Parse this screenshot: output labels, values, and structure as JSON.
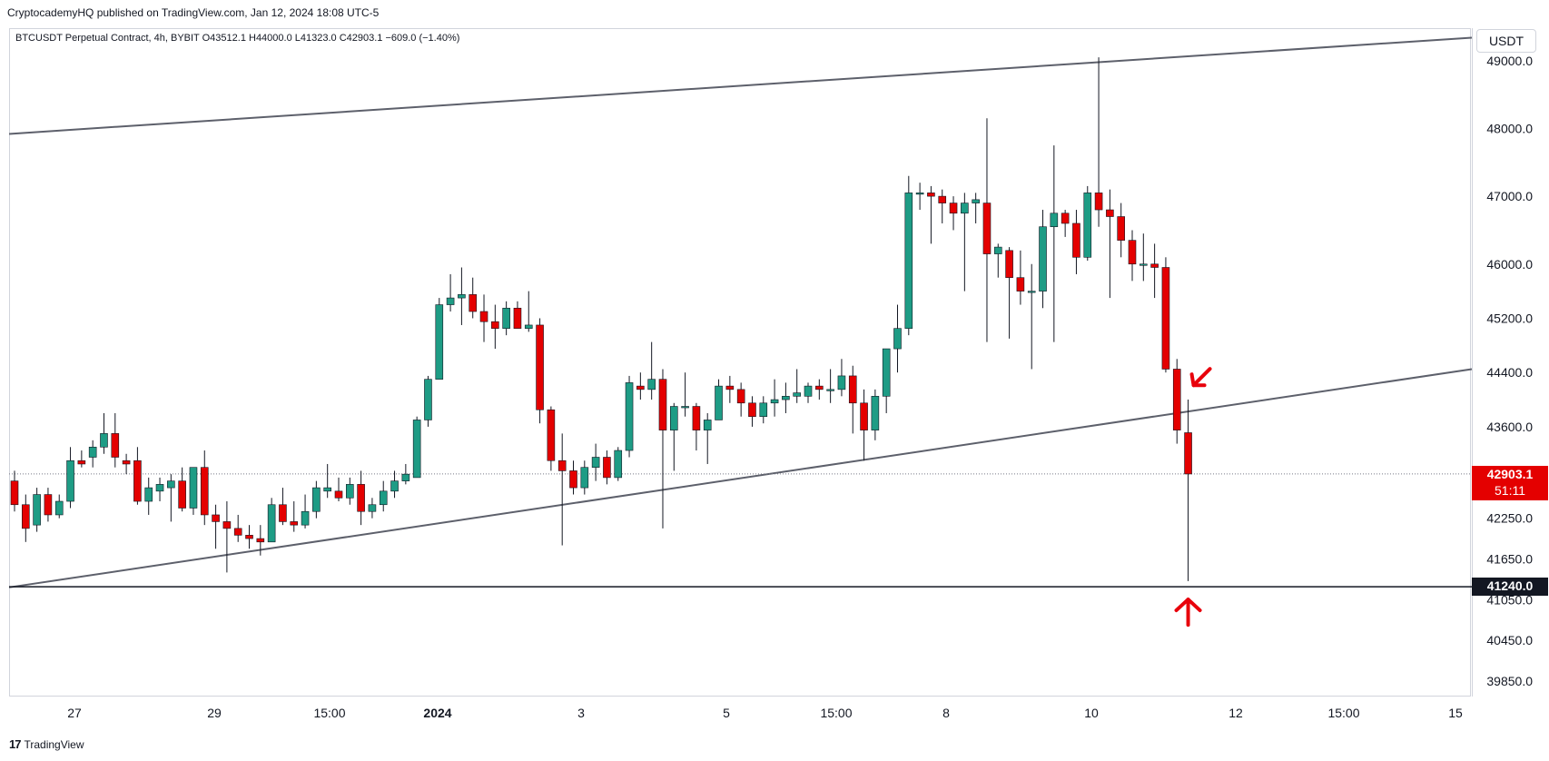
{
  "header": {
    "publisher_line": "CryptocademyHQ published on TradingView.com, Jan 12, 2024 18:08 UTC-5",
    "symbol_line": "BTCUSDT Perpetual Contract, 4h, BYBIT  O43512.1  H44000.0  L41323.0  C42903.1  −609.0 (−1.40%)"
  },
  "price_axis": {
    "currency": "USDT",
    "ticks": [
      "49000.0",
      "48000.0",
      "47000.0",
      "46000.0",
      "45200.0",
      "44400.0",
      "43600.0",
      "42250.0",
      "41650.0",
      "41050.0",
      "40450.0",
      "39850.0"
    ],
    "last_price_label": "42903.1",
    "countdown_label": "51:11",
    "level_label": "41240.0"
  },
  "time_axis": {
    "labels": [
      "27",
      "29",
      "15:00",
      "2024",
      "3",
      "5",
      "15:00",
      "8",
      "10",
      "12",
      "15:00",
      "15"
    ]
  },
  "footer": {
    "brand": "TradingView"
  },
  "colors": {
    "up": "#1e9c85",
    "down": "#e40000",
    "line": "#5d606b",
    "arrow": "#e8000b"
  },
  "chart_data": {
    "type": "candlestick",
    "symbol": "BTCUSDT Perpetual Contract",
    "interval": "4h",
    "exchange": "BYBIT",
    "candles": [
      {
        "o": 42800,
        "h": 42950,
        "l": 42350,
        "c": 42450
      },
      {
        "o": 42450,
        "h": 42600,
        "l": 41900,
        "c": 42100
      },
      {
        "o": 42150,
        "h": 42700,
        "l": 42050,
        "c": 42600
      },
      {
        "o": 42600,
        "h": 42700,
        "l": 42200,
        "c": 42300
      },
      {
        "o": 42300,
        "h": 42600,
        "l": 42250,
        "c": 42500
      },
      {
        "o": 42500,
        "h": 43300,
        "l": 42400,
        "c": 43100
      },
      {
        "o": 43100,
        "h": 43250,
        "l": 43000,
        "c": 43050
      },
      {
        "o": 43150,
        "h": 43400,
        "l": 43000,
        "c": 43300
      },
      {
        "o": 43300,
        "h": 43800,
        "l": 43200,
        "c": 43500
      },
      {
        "o": 43500,
        "h": 43800,
        "l": 43000,
        "c": 43150
      },
      {
        "o": 43100,
        "h": 43200,
        "l": 42900,
        "c": 43050
      },
      {
        "o": 43100,
        "h": 43300,
        "l": 42450,
        "c": 42500
      },
      {
        "o": 42500,
        "h": 42850,
        "l": 42300,
        "c": 42700
      },
      {
        "o": 42650,
        "h": 42850,
        "l": 42500,
        "c": 42750
      },
      {
        "o": 42700,
        "h": 42900,
        "l": 42200,
        "c": 42800
      },
      {
        "o": 42800,
        "h": 43000,
        "l": 42350,
        "c": 42400
      },
      {
        "o": 42400,
        "h": 43000,
        "l": 42300,
        "c": 43000
      },
      {
        "o": 43000,
        "h": 43250,
        "l": 42150,
        "c": 42300
      },
      {
        "o": 42300,
        "h": 42450,
        "l": 41800,
        "c": 42200
      },
      {
        "o": 42200,
        "h": 42500,
        "l": 41450,
        "c": 42100
      },
      {
        "o": 42100,
        "h": 42300,
        "l": 41900,
        "c": 42000
      },
      {
        "o": 42000,
        "h": 42150,
        "l": 41800,
        "c": 41950
      },
      {
        "o": 41950,
        "h": 42150,
        "l": 41700,
        "c": 41900
      },
      {
        "o": 41900,
        "h": 42550,
        "l": 41900,
        "c": 42450
      },
      {
        "o": 42450,
        "h": 42700,
        "l": 42150,
        "c": 42200
      },
      {
        "o": 42200,
        "h": 42500,
        "l": 42050,
        "c": 42150
      },
      {
        "o": 42150,
        "h": 42600,
        "l": 42100,
        "c": 42350
      },
      {
        "o": 42350,
        "h": 42800,
        "l": 42250,
        "c": 42700
      },
      {
        "o": 42650,
        "h": 43050,
        "l": 42550,
        "c": 42700
      },
      {
        "o": 42650,
        "h": 42850,
        "l": 42500,
        "c": 42550
      },
      {
        "o": 42550,
        "h": 42850,
        "l": 42450,
        "c": 42750
      },
      {
        "o": 42750,
        "h": 42950,
        "l": 42150,
        "c": 42350
      },
      {
        "o": 42350,
        "h": 42550,
        "l": 42250,
        "c": 42450
      },
      {
        "o": 42450,
        "h": 42800,
        "l": 42350,
        "c": 42650
      },
      {
        "o": 42650,
        "h": 42950,
        "l": 42550,
        "c": 42800
      },
      {
        "o": 42800,
        "h": 43050,
        "l": 42750,
        "c": 42900
      },
      {
        "o": 42850,
        "h": 43750,
        "l": 42850,
        "c": 43700
      },
      {
        "o": 43700,
        "h": 44350,
        "l": 43600,
        "c": 44300
      },
      {
        "o": 44300,
        "h": 45500,
        "l": 44300,
        "c": 45400
      },
      {
        "o": 45400,
        "h": 45850,
        "l": 45300,
        "c": 45500
      },
      {
        "o": 45500,
        "h": 45950,
        "l": 45100,
        "c": 45550
      },
      {
        "o": 45550,
        "h": 45800,
        "l": 45200,
        "c": 45300
      },
      {
        "o": 45300,
        "h": 45550,
        "l": 44850,
        "c": 45150
      },
      {
        "o": 45150,
        "h": 45400,
        "l": 44750,
        "c": 45050
      },
      {
        "o": 45050,
        "h": 45450,
        "l": 44950,
        "c": 45350
      },
      {
        "o": 45350,
        "h": 45450,
        "l": 45050,
        "c": 45050
      },
      {
        "o": 45050,
        "h": 45600,
        "l": 45000,
        "c": 45100
      },
      {
        "o": 45100,
        "h": 45200,
        "l": 43650,
        "c": 43850
      },
      {
        "o": 43850,
        "h": 43900,
        "l": 42950,
        "c": 43100
      },
      {
        "o": 43100,
        "h": 43500,
        "l": 41850,
        "c": 42950
      },
      {
        "o": 42950,
        "h": 43100,
        "l": 42600,
        "c": 42700
      },
      {
        "o": 42700,
        "h": 43100,
        "l": 42600,
        "c": 43000
      },
      {
        "o": 43000,
        "h": 43350,
        "l": 42800,
        "c": 43150
      },
      {
        "o": 43150,
        "h": 43250,
        "l": 42750,
        "c": 42850
      },
      {
        "o": 42850,
        "h": 43300,
        "l": 42800,
        "c": 43250
      },
      {
        "o": 43250,
        "h": 44350,
        "l": 43150,
        "c": 44250
      },
      {
        "o": 44200,
        "h": 44400,
        "l": 44000,
        "c": 44150
      },
      {
        "o": 44150,
        "h": 44850,
        "l": 44000,
        "c": 44300
      },
      {
        "o": 44300,
        "h": 44450,
        "l": 42100,
        "c": 43550
      },
      {
        "o": 43550,
        "h": 43950,
        "l": 42950,
        "c": 43900
      },
      {
        "o": 43900,
        "h": 44400,
        "l": 43750,
        "c": 43900
      },
      {
        "o": 43900,
        "h": 43950,
        "l": 43250,
        "c": 43550
      },
      {
        "o": 43550,
        "h": 43800,
        "l": 43050,
        "c": 43700
      },
      {
        "o": 43700,
        "h": 44300,
        "l": 43700,
        "c": 44200
      },
      {
        "o": 44200,
        "h": 44350,
        "l": 43950,
        "c": 44150
      },
      {
        "o": 44150,
        "h": 44250,
        "l": 43750,
        "c": 43950
      },
      {
        "o": 43950,
        "h": 44050,
        "l": 43600,
        "c": 43750
      },
      {
        "o": 43750,
        "h": 44050,
        "l": 43650,
        "c": 43950
      },
      {
        "o": 43950,
        "h": 44300,
        "l": 43750,
        "c": 44000
      },
      {
        "o": 44000,
        "h": 44250,
        "l": 43800,
        "c": 44050
      },
      {
        "o": 44050,
        "h": 44450,
        "l": 43950,
        "c": 44100
      },
      {
        "o": 44050,
        "h": 44250,
        "l": 43950,
        "c": 44200
      },
      {
        "o": 44200,
        "h": 44300,
        "l": 44000,
        "c": 44150
      },
      {
        "o": 44150,
        "h": 44450,
        "l": 43950,
        "c": 44150
      },
      {
        "o": 44150,
        "h": 44600,
        "l": 44050,
        "c": 44350
      },
      {
        "o": 44350,
        "h": 44500,
        "l": 43500,
        "c": 43950
      },
      {
        "o": 43950,
        "h": 44150,
        "l": 43100,
        "c": 43550
      },
      {
        "o": 43550,
        "h": 44150,
        "l": 43400,
        "c": 44050
      },
      {
        "o": 44050,
        "h": 44750,
        "l": 43800,
        "c": 44750
      },
      {
        "o": 44750,
        "h": 45400,
        "l": 44400,
        "c": 45050
      },
      {
        "o": 45050,
        "h": 47300,
        "l": 44950,
        "c": 47050
      },
      {
        "o": 47050,
        "h": 47200,
        "l": 46800,
        "c": 47050
      },
      {
        "o": 47050,
        "h": 47150,
        "l": 46300,
        "c": 47000
      },
      {
        "o": 47000,
        "h": 47100,
        "l": 46600,
        "c": 46900
      },
      {
        "o": 46900,
        "h": 47000,
        "l": 46500,
        "c": 46750
      },
      {
        "o": 46750,
        "h": 47050,
        "l": 45600,
        "c": 46900
      },
      {
        "o": 46900,
        "h": 47050,
        "l": 46600,
        "c": 46950
      },
      {
        "o": 46900,
        "h": 48150,
        "l": 44850,
        "c": 46150
      },
      {
        "o": 46150,
        "h": 46300,
        "l": 45800,
        "c": 46250
      },
      {
        "o": 46200,
        "h": 46250,
        "l": 44900,
        "c": 45800
      },
      {
        "o": 45800,
        "h": 46200,
        "l": 45400,
        "c": 45600
      },
      {
        "o": 45600,
        "h": 46000,
        "l": 44450,
        "c": 45600
      },
      {
        "o": 45600,
        "h": 46800,
        "l": 45350,
        "c": 46550
      },
      {
        "o": 46550,
        "h": 47750,
        "l": 44850,
        "c": 46750
      },
      {
        "o": 46750,
        "h": 46800,
        "l": 46400,
        "c": 46600
      },
      {
        "o": 46600,
        "h": 46800,
        "l": 45850,
        "c": 46100
      },
      {
        "o": 46100,
        "h": 47150,
        "l": 46050,
        "c": 47050
      },
      {
        "o": 47050,
        "h": 49050,
        "l": 46550,
        "c": 46800
      },
      {
        "o": 46800,
        "h": 47100,
        "l": 45500,
        "c": 46700
      },
      {
        "o": 46700,
        "h": 46900,
        "l": 46100,
        "c": 46350
      },
      {
        "o": 46350,
        "h": 46500,
        "l": 45750,
        "c": 46000
      },
      {
        "o": 46000,
        "h": 46450,
        "l": 45750,
        "c": 46000
      },
      {
        "o": 46000,
        "h": 46300,
        "l": 45500,
        "c": 45950
      },
      {
        "o": 45950,
        "h": 46100,
        "l": 44400,
        "c": 44450
      },
      {
        "o": 44450,
        "h": 44600,
        "l": 43350,
        "c": 43550
      },
      {
        "o": 43512.1,
        "h": 44000,
        "l": 41323,
        "c": 42903.1
      }
    ],
    "price_range": [
      39620,
      49480
    ],
    "trendlines": [
      {
        "from": {
          "x": 0,
          "price": 47920
        },
        "to": {
          "x": 1,
          "price": 49340
        }
      },
      {
        "from": {
          "x": 0,
          "price": 41230
        },
        "to": {
          "x": 1,
          "price": 44450
        }
      }
    ],
    "horizontal_level": 41240.0,
    "last_price": 42903.1
  }
}
